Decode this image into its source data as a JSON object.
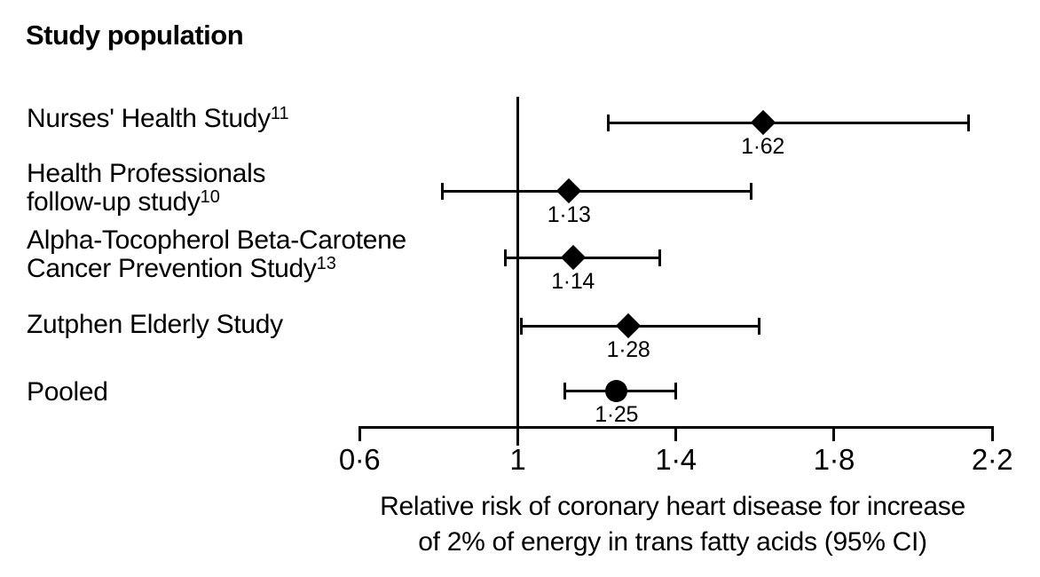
{
  "title": "Study population",
  "chart_data": {
    "type": "forest",
    "title": "Study population",
    "xlabel_lines": [
      "Relative risk of coronary heart disease for increase",
      "of 2% of energy in trans fatty acids (95% CI)"
    ],
    "axis": {
      "xlim": [
        0.6,
        2.2
      ],
      "reference_line_x": 1.0,
      "ticks": [
        {
          "value": 0.6,
          "label": "0·6"
        },
        {
          "value": 1.0,
          "label": "1"
        },
        {
          "value": 1.4,
          "label": "1·4"
        },
        {
          "value": 1.8,
          "label": "1·8"
        },
        {
          "value": 2.2,
          "label": "2·2"
        }
      ]
    },
    "rows": [
      {
        "label_lines": [
          {
            "text": "Nurses' Health Study",
            "sup": "11"
          }
        ],
        "estimate": 1.62,
        "estimate_label": "1·62",
        "ci_low": 1.23,
        "ci_high": 2.14,
        "marker": "diamond"
      },
      {
        "label_lines": [
          {
            "text": "Health Professionals",
            "sup": ""
          },
          {
            "text": "follow-up study",
            "sup": "10"
          }
        ],
        "estimate": 1.13,
        "estimate_label": "1·13",
        "ci_low": 0.81,
        "ci_high": 1.59,
        "marker": "diamond"
      },
      {
        "label_lines": [
          {
            "text": "Alpha-Tocopherol Beta-Carotene",
            "sup": ""
          },
          {
            "text": "Cancer Prevention Study",
            "sup": "13"
          }
        ],
        "estimate": 1.14,
        "estimate_label": "1·14",
        "ci_low": 0.97,
        "ci_high": 1.36,
        "marker": "diamond"
      },
      {
        "label_lines": [
          {
            "text": "Zutphen Elderly Study",
            "sup": ""
          }
        ],
        "estimate": 1.28,
        "estimate_label": "1·28",
        "ci_low": 1.01,
        "ci_high": 1.61,
        "marker": "diamond"
      },
      {
        "label_lines": [
          {
            "text": "Pooled",
            "sup": ""
          }
        ],
        "estimate": 1.25,
        "estimate_label": "1·25",
        "ci_low": 1.12,
        "ci_high": 1.4,
        "marker": "circle"
      }
    ]
  }
}
